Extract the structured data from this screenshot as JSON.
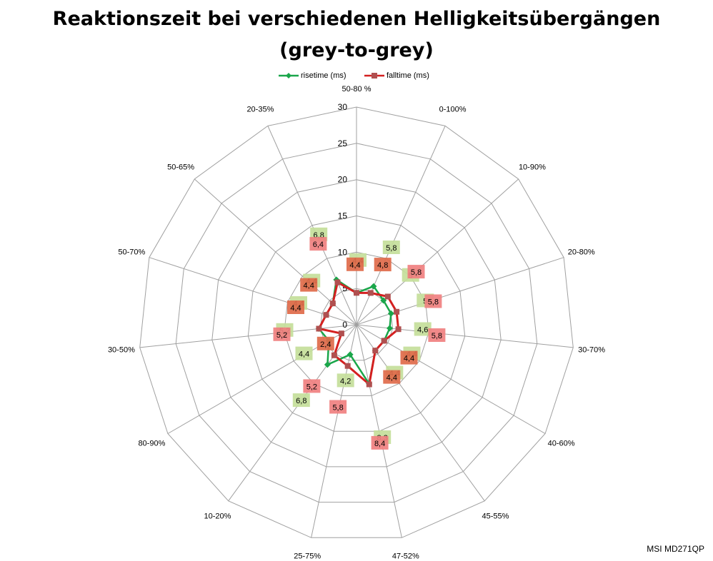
{
  "title_line1": "Reaktionszeit bei verschiedenen Helligkeitsübergängen",
  "title_line2": "(grey-to-grey)",
  "watermark": "MSI MD271QP",
  "colors": {
    "rise": "#1aa64a",
    "fall": "#d42020",
    "grid": "#a0a0a0"
  },
  "chart_data": {
    "type": "radar",
    "title": "Reaktionszeit bei verschiedenen Helligkeitsübergängen (grey-to-grey)",
    "categories": [
      "50-80 %",
      "0-100%",
      "10-90%",
      "20-80%",
      "30-70%",
      "40-60%",
      "45-55%",
      "47-52%",
      "25-75%",
      "10-20%",
      "80-90%",
      "30-50%",
      "50-70%",
      "50-65%",
      "20-35%"
    ],
    "ylim": [
      0,
      30
    ],
    "ticks": [
      0,
      5,
      10,
      15,
      20,
      25,
      30
    ],
    "grid": true,
    "legend_position": "top",
    "series": [
      {
        "name": "risetime (ms)",
        "values": [
          4.4,
          5.8,
          5.0,
          5.0,
          4.6,
          4.4,
          4.4,
          8.3,
          4.2,
          6.8,
          4.4,
          5.2,
          4.4,
          4.4,
          6.8
        ],
        "labels": [
          "4,4",
          "5,8",
          "5",
          "5",
          "4,6",
          "4,4",
          "4,4",
          "8,3",
          "4,2",
          "6,8",
          "4,4",
          "5,2",
          "4,4",
          "4,4",
          "6,8"
        ]
      },
      {
        "name": "falltime (ms)",
        "values": [
          4.4,
          4.8,
          5.8,
          5.8,
          5.8,
          4.4,
          4.4,
          8.4,
          5.8,
          5.2,
          2.4,
          5.2,
          4.4,
          4.4,
          6.4
        ],
        "labels": [
          "4,4",
          "4,8",
          "5,8",
          "5,8",
          "5,8",
          "4,4",
          "4,4",
          "8,4",
          "5,8",
          "5,2",
          "2,4",
          "5,2",
          "4,4",
          "4,4",
          "6,4"
        ]
      }
    ]
  }
}
